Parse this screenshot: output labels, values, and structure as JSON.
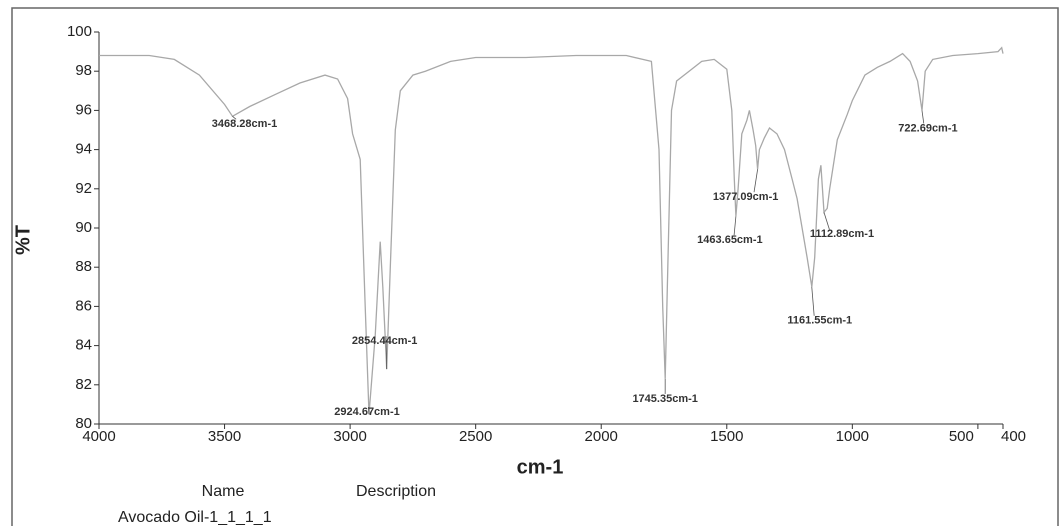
{
  "chart_data": {
    "type": "line",
    "xlabel": "cm-1",
    "ylabel": "%T",
    "xlim": [
      4000,
      400
    ],
    "ylim": [
      80,
      100
    ],
    "xticks": [
      4000,
      3500,
      3000,
      2500,
      2000,
      1500,
      1000,
      500,
      400
    ],
    "yticks": [
      80,
      82,
      84,
      86,
      88,
      90,
      92,
      94,
      96,
      98,
      100
    ],
    "series": [
      {
        "color": "#a8a8a8",
        "x": [
          4000,
          3800,
          3700,
          3600,
          3500,
          3468.28,
          3400,
          3300,
          3200,
          3100,
          3050,
          3010,
          2990,
          2960,
          2940,
          2924.67,
          2900,
          2880,
          2870,
          2854.44,
          2840,
          2820,
          2800,
          2750,
          2700,
          2600,
          2500,
          2300,
          2100,
          1900,
          1800,
          1770,
          1755,
          1745.35,
          1735,
          1720,
          1700,
          1650,
          1600,
          1550,
          1500,
          1480,
          1470,
          1463.65,
          1455,
          1440,
          1420,
          1410,
          1395,
          1385,
          1377.09,
          1370,
          1350,
          1330,
          1300,
          1270,
          1240,
          1220,
          1200,
          1180,
          1161.55,
          1150,
          1135,
          1125,
          1112.89,
          1100,
          1090,
          1060,
          1020,
          1000,
          950,
          900,
          850,
          800,
          770,
          740,
          722.69,
          710,
          680,
          600,
          500,
          420,
          405,
          400
        ],
        "values": [
          98.8,
          98.8,
          98.6,
          97.8,
          96.3,
          95.7,
          96.2,
          96.8,
          97.4,
          97.8,
          97.6,
          96.6,
          94.8,
          93.5,
          86,
          80.5,
          84.5,
          89.3,
          87,
          82.8,
          88,
          95,
          97,
          97.8,
          98,
          98.5,
          98.7,
          98.7,
          98.8,
          98.8,
          98.5,
          94,
          86,
          82.3,
          88,
          96,
          97.5,
          98,
          98.5,
          98.6,
          98.1,
          96,
          92.5,
          90.6,
          92,
          94.8,
          95.5,
          96,
          95,
          94.2,
          93.0,
          94,
          94.6,
          95.1,
          94.8,
          94,
          92.5,
          91.5,
          90,
          88.5,
          87.0,
          88.5,
          92.5,
          93.2,
          90.8,
          91,
          92,
          94.5,
          95.8,
          96.5,
          97.8,
          98.2,
          98.5,
          98.9,
          98.5,
          97.5,
          96.0,
          98,
          98.6,
          98.8,
          98.9,
          99.0,
          99.2,
          98.9
        ]
      }
    ],
    "annotations": [
      {
        "label": "3468.28cm-1",
        "x": 3468.28,
        "y": 95.7
      },
      {
        "label": "2924.67cm-1",
        "x": 2924.67,
        "y": 80.5
      },
      {
        "label": "2854.44cm-1",
        "x": 2854.44,
        "y": 82.8
      },
      {
        "label": "1745.35cm-1",
        "x": 1745.35,
        "y": 82.3
      },
      {
        "label": "1463.65cm-1",
        "x": 1463.65,
        "y": 90.6
      },
      {
        "label": "1377.09cm-1",
        "x": 1377.09,
        "y": 93.0
      },
      {
        "label": "1161.55cm-1",
        "x": 1161.55,
        "y": 87.0
      },
      {
        "label": "1112.89cm-1",
        "x": 1112.89,
        "y": 90.8
      },
      {
        "label": "722.69cm-1",
        "x": 722.69,
        "y": 96.0
      }
    ]
  },
  "info_table": {
    "header": [
      "Name",
      "Description"
    ],
    "rows": [
      [
        "Avocado Oil-1_1_1_1"
      ]
    ]
  }
}
